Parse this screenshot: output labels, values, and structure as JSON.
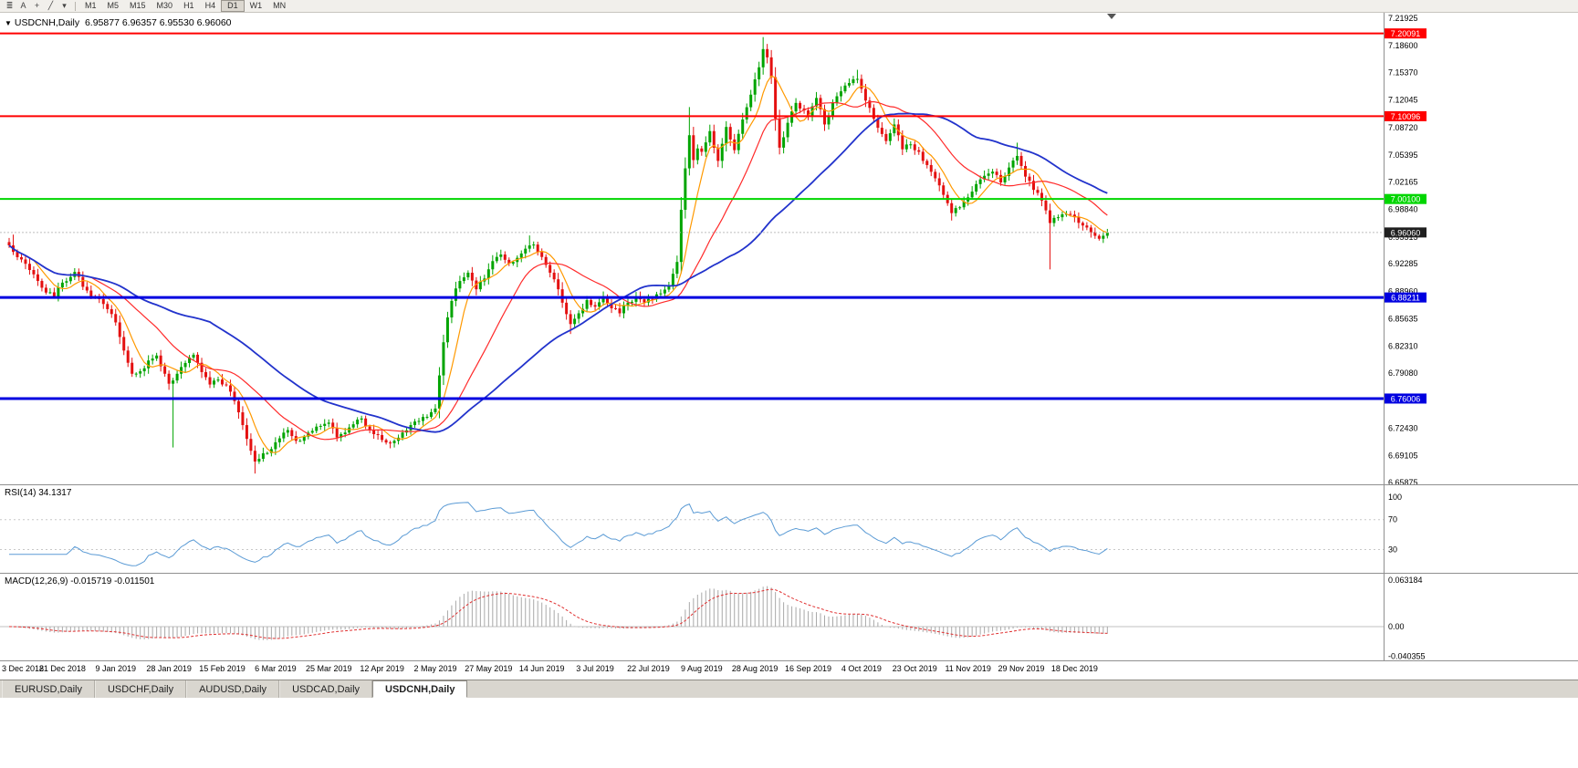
{
  "toolbar": {
    "icons": [
      {
        "name": "charts-menu-icon",
        "glyph": "≣"
      },
      {
        "name": "cursor-tool-icon",
        "glyph": "A"
      },
      {
        "name": "crosshair-tool-icon",
        "glyph": "+"
      },
      {
        "name": "trendline-tool-icon",
        "glyph": "╱"
      },
      {
        "name": "objects-dropdown-caret-icon",
        "glyph": "▾"
      }
    ],
    "timeframes": [
      "M1",
      "M5",
      "M15",
      "M30",
      "H1",
      "H4",
      "D1",
      "W1",
      "MN"
    ],
    "active_timeframe": "D1"
  },
  "chart": {
    "symbol_label": "USDCNH,Daily",
    "ohlc": "6.95877 6.96357 6.95530 6.96060",
    "price_axis": [
      "7.21925",
      "7.18600",
      "7.15370",
      "7.12045",
      "7.08720",
      "7.05395",
      "7.02165",
      "6.98840",
      "6.95515",
      "6.92285",
      "6.88960",
      "6.85635",
      "6.82310",
      "6.79080",
      "6.75755",
      "6.72430",
      "6.69105",
      "6.65875"
    ],
    "levels": [
      {
        "label": "7.20091",
        "value": 7.20091,
        "color": "#ff0000",
        "width": 2,
        "style": "solid"
      },
      {
        "label": "7.10096",
        "value": 7.10096,
        "color": "#ff0000",
        "width": 2,
        "style": "solid"
      },
      {
        "label": "7.00100",
        "value": 7.001,
        "color": "#00d600",
        "width": 2,
        "style": "solid"
      },
      {
        "label": "6.96060",
        "value": 6.9606,
        "color": "#bdbdbd",
        "width": 1,
        "style": "dotted",
        "tag_bg": "#1f1f1f",
        "is_current_price": true
      },
      {
        "label": "6.88211",
        "value": 6.88211,
        "color": "#0000e0",
        "width": 3,
        "style": "solid"
      },
      {
        "label": "6.76006",
        "value": 6.76006,
        "color": "#0000e0",
        "width": 3,
        "style": "solid"
      }
    ]
  },
  "rsi": {
    "label": "RSI(14) 34.1317",
    "period": 14,
    "current": 34.1317,
    "axis_labels": [
      "100",
      "70",
      "30"
    ],
    "guide_levels": [
      70,
      30
    ]
  },
  "macd": {
    "label": "MACD(12,26,9) -0.015719 -0.011501",
    "params": [
      12,
      26,
      9
    ],
    "current_macd": -0.015719,
    "current_signal": -0.011501,
    "axis_labels": [
      "0.063184",
      "0.00",
      "-0.040355"
    ]
  },
  "colors": {
    "candle_up": "#00a400",
    "candle_down": "#e41010",
    "axis_text": "#000000",
    "separator": "#909090",
    "rsi_line": "#5b9bd5",
    "rsi_guide": "#c8c8c8",
    "macd_histogram": "#a8a8a8",
    "macd_signal": "#e03030",
    "macd_zero": "#c0c0c0",
    "tag_text": "#ffffff",
    "shift_marker": "#555555"
  },
  "chart_data": {
    "type": "candlestick",
    "symbol": "USDCNH",
    "period": "Daily",
    "bars": 269,
    "price_axis_min": 6.65875,
    "price_axis_max": 7.21925,
    "last_close": 6.9606,
    "x_label_every_bars": 13,
    "x_labels": [
      "3 Dec 2018",
      "21 Dec 2018",
      "9 Jan 2019",
      "28 Jan 2019",
      "15 Feb 2019",
      "6 Mar 2019",
      "25 Mar 2019",
      "12 Apr 2019",
      "2 May 2019",
      "27 May 2019",
      "14 Jun 2019",
      "3 Jul 2019",
      "22 Jul 2019",
      "9 Aug 2019",
      "28 Aug 2019",
      "16 Sep 2019",
      "4 Oct 2019",
      "23 Oct 2019",
      "11 Nov 2019",
      "29 Nov 2019",
      "18 Dec 2019"
    ],
    "close_anchors": [
      [
        0,
        6.945
      ],
      [
        3,
        6.928
      ],
      [
        6,
        6.91
      ],
      [
        9,
        6.888
      ],
      [
        11,
        6.883
      ],
      [
        13,
        6.9
      ],
      [
        16,
        6.913
      ],
      [
        18,
        6.895
      ],
      [
        21,
        6.882
      ],
      [
        24,
        6.868
      ],
      [
        26,
        6.852
      ],
      [
        28,
        6.818
      ],
      [
        30,
        6.79
      ],
      [
        32,
        6.793
      ],
      [
        34,
        6.806
      ],
      [
        36,
        6.812
      ],
      [
        38,
        6.79
      ],
      [
        39,
        6.778
      ],
      [
        41,
        6.79
      ],
      [
        43,
        6.803
      ],
      [
        45,
        6.813
      ],
      [
        47,
        6.792
      ],
      [
        49,
        6.777
      ],
      [
        51,
        6.783
      ],
      [
        53,
        6.776
      ],
      [
        55,
        6.757
      ],
      [
        57,
        6.728
      ],
      [
        59,
        6.697
      ],
      [
        60,
        6.684
      ],
      [
        62,
        6.694
      ],
      [
        64,
        6.699
      ],
      [
        66,
        6.712
      ],
      [
        68,
        6.722
      ],
      [
        70,
        6.709
      ],
      [
        72,
        6.714
      ],
      [
        74,
        6.721
      ],
      [
        76,
        6.727
      ],
      [
        78,
        6.731
      ],
      [
        80,
        6.713
      ],
      [
        82,
        6.719
      ],
      [
        84,
        6.729
      ],
      [
        86,
        6.736
      ],
      [
        88,
        6.722
      ],
      [
        90,
        6.716
      ],
      [
        92,
        6.707
      ],
      [
        94,
        6.709
      ],
      [
        96,
        6.719
      ],
      [
        98,
        6.728
      ],
      [
        100,
        6.733
      ],
      [
        102,
        6.738
      ],
      [
        104,
        6.748
      ],
      [
        105,
        6.788
      ],
      [
        106,
        6.828
      ],
      [
        107,
        6.858
      ],
      [
        108,
        6.878
      ],
      [
        109,
        6.893
      ],
      [
        110,
        6.902
      ],
      [
        112,
        6.912
      ],
      [
        114,
        6.892
      ],
      [
        116,
        6.905
      ],
      [
        118,
        6.926
      ],
      [
        120,
        6.934
      ],
      [
        122,
        6.923
      ],
      [
        124,
        6.93
      ],
      [
        126,
        6.941
      ],
      [
        128,
        6.946
      ],
      [
        130,
        6.931
      ],
      [
        132,
        6.912
      ],
      [
        134,
        6.892
      ],
      [
        136,
        6.862
      ],
      [
        137,
        6.85
      ],
      [
        139,
        6.863
      ],
      [
        141,
        6.879
      ],
      [
        143,
        6.871
      ],
      [
        145,
        6.883
      ],
      [
        147,
        6.869
      ],
      [
        149,
        6.863
      ],
      [
        151,
        6.876
      ],
      [
        153,
        6.883
      ],
      [
        155,
        6.876
      ],
      [
        157,
        6.88
      ],
      [
        159,
        6.887
      ],
      [
        161,
        6.896
      ],
      [
        163,
        6.925
      ],
      [
        164,
        6.988
      ],
      [
        165,
        7.038
      ],
      [
        166,
        7.078
      ],
      [
        167,
        7.048
      ],
      [
        168,
        7.062
      ],
      [
        169,
        7.058
      ],
      [
        171,
        7.083
      ],
      [
        173,
        7.047
      ],
      [
        175,
        7.088
      ],
      [
        177,
        7.06
      ],
      [
        179,
        7.097
      ],
      [
        181,
        7.127
      ],
      [
        183,
        7.16
      ],
      [
        184,
        7.182
      ],
      [
        185,
        7.172
      ],
      [
        186,
        7.148
      ],
      [
        187,
        7.098
      ],
      [
        188,
        7.063
      ],
      [
        190,
        7.093
      ],
      [
        192,
        7.117
      ],
      [
        194,
        7.108
      ],
      [
        195,
        7.102
      ],
      [
        197,
        7.123
      ],
      [
        199,
        7.091
      ],
      [
        201,
        7.117
      ],
      [
        203,
        7.131
      ],
      [
        205,
        7.141
      ],
      [
        207,
        7.146
      ],
      [
        208,
        7.134
      ],
      [
        210,
        7.111
      ],
      [
        212,
        7.087
      ],
      [
        214,
        7.071
      ],
      [
        216,
        7.091
      ],
      [
        218,
        7.061
      ],
      [
        220,
        7.067
      ],
      [
        222,
        7.058
      ],
      [
        224,
        7.042
      ],
      [
        226,
        7.026
      ],
      [
        228,
        7.006
      ],
      [
        230,
        6.984
      ],
      [
        232,
        6.991
      ],
      [
        234,
        7.003
      ],
      [
        236,
        7.019
      ],
      [
        238,
        7.029
      ],
      [
        240,
        7.034
      ],
      [
        242,
        7.021
      ],
      [
        244,
        7.039
      ],
      [
        246,
        7.053
      ],
      [
        248,
        7.028
      ],
      [
        250,
        7.012
      ],
      [
        252,
        6.999
      ],
      [
        254,
        6.972
      ],
      [
        256,
        6.979
      ],
      [
        258,
        6.983
      ],
      [
        260,
        6.979
      ],
      [
        262,
        6.969
      ],
      [
        264,
        6.961
      ],
      [
        266,
        6.953
      ],
      [
        268,
        6.9606
      ]
    ],
    "special_highs": [
      [
        1,
        6.958
      ],
      [
        127,
        6.957
      ],
      [
        166,
        7.112
      ],
      [
        184,
        7.1965
      ],
      [
        207,
        7.157
      ],
      [
        246,
        7.069
      ]
    ],
    "special_lows": [
      [
        40,
        6.701
      ],
      [
        60,
        6.6695
      ],
      [
        93,
        6.7
      ],
      [
        137,
        6.838
      ],
      [
        230,
        6.975
      ],
      [
        254,
        6.916
      ],
      [
        267,
        6.948
      ]
    ],
    "moving_averages": [
      {
        "name": "ma-fast",
        "period": 7,
        "color": "#ff9900",
        "width": 1.2
      },
      {
        "name": "ma-mid",
        "period": 21,
        "color": "#ff2a2a",
        "width": 1.2
      },
      {
        "name": "ma-slow",
        "period": 50,
        "color": "#2233cc",
        "width": 1.8
      }
    ]
  },
  "tabs": [
    {
      "label": "EURUSD,Daily",
      "active": false
    },
    {
      "label": "USDCHF,Daily",
      "active": false
    },
    {
      "label": "AUDUSD,Daily",
      "active": false
    },
    {
      "label": "USDCAD,Daily",
      "active": false
    },
    {
      "label": "USDCNH,Daily",
      "active": true
    }
  ]
}
